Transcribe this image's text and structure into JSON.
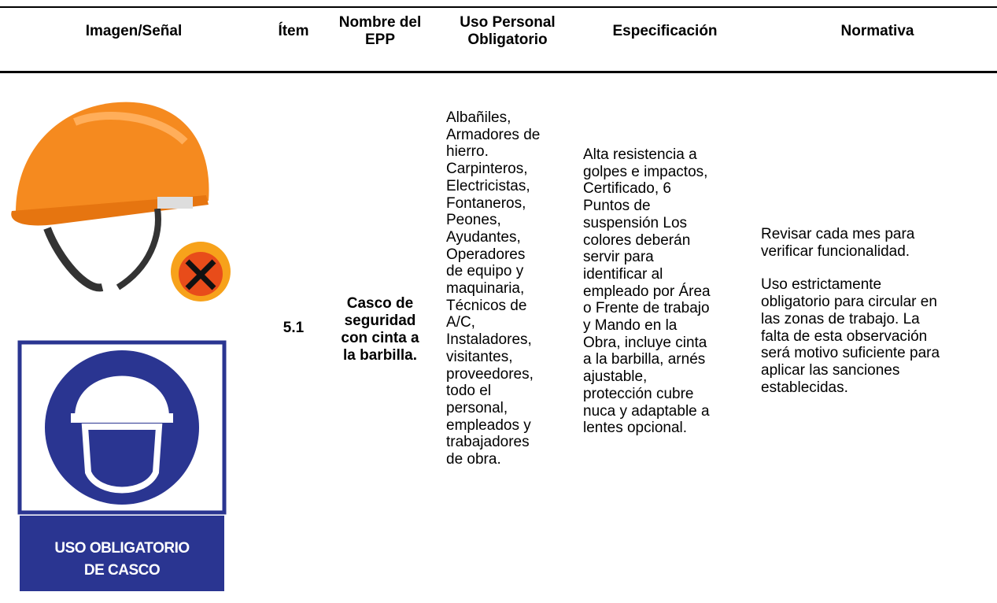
{
  "table": {
    "headers": [
      [
        "Imagen/Señal"
      ],
      [
        "Ítem"
      ],
      [
        "Nombre del",
        "EPP"
      ],
      [
        "Uso Personal",
        "Obligatorio"
      ],
      [
        "Especificación"
      ],
      [
        "Normativa"
      ]
    ],
    "rows": [
      {
        "sign_text": [
          "USO OBLIGATORIO",
          "DE CASCO"
        ],
        "item": "5.1",
        "name": [
          "Casco de",
          "seguridad",
          "con cinta a",
          "la barbilla."
        ],
        "uso": [
          "Albañiles,",
          "Armadores de",
          "hierro.",
          "Carpinteros,",
          "Electricistas,",
          "Fontaneros,",
          "Peones,",
          "Ayudantes,",
          "Operadores",
          "de equipo y",
          "maquinaria,",
          "Técnicos de",
          "A/C,",
          "Instaladores,",
          "visitantes,",
          "proveedores,",
          "todo el",
          "personal,",
          "empleados y",
          "trabajadores",
          "de obra."
        ],
        "especificacion": [
          "Alta resistencia a",
          "golpes e impactos,",
          "Certificado, 6",
          "Puntos de",
          "suspensión Los",
          "colores deberán",
          "servir para",
          "identificar al",
          "empleado por Área",
          "o Frente de trabajo",
          "y Mando en la",
          "Obra, incluye cinta",
          "a la barbilla, arnés",
          "ajustable,",
          "protección cubre",
          "nuca y adaptable a",
          "lentes opcional."
        ],
        "normativa": [
          [
            "Revisar cada mes para",
            "verificar funcionalidad."
          ],
          [
            "Uso estrictamente",
            "obligatorio para circular en",
            "las zonas de trabajo. La",
            "falta de esta observación",
            "será motivo suficiente para",
            "aplicar las sanciones",
            "establecidas."
          ]
        ]
      }
    ]
  }
}
